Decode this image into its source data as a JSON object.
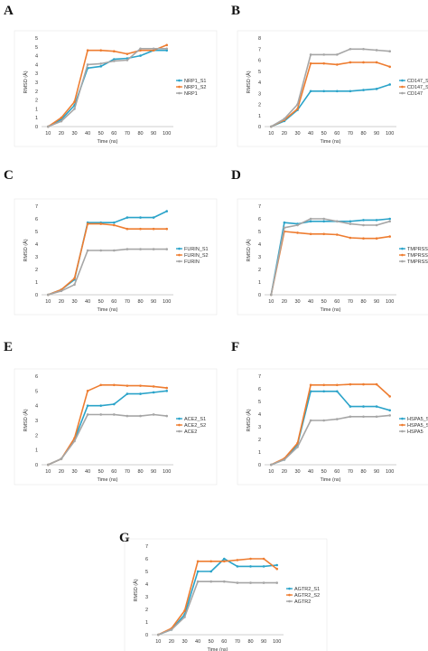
{
  "colors": {
    "s1": "#2aa3c9",
    "s2": "#ee7d31",
    "base": "#a6a6a6"
  },
  "chart_data": [
    {
      "letter": "A",
      "type": "line",
      "x": [
        10,
        20,
        30,
        40,
        50,
        60,
        70,
        80,
        90,
        100
      ],
      "xlabel": "Time (ns)",
      "ylabel": "RMSD (Å)",
      "ylim": [
        0,
        5
      ],
      "yticks": [
        "0",
        "1",
        "1",
        "2",
        "2",
        "3",
        "3",
        "4",
        "4",
        "5",
        "5"
      ],
      "series": [
        {
          "name": "NRP1_S1",
          "color": "s1",
          "values": [
            0,
            0.4,
            1.2,
            3.3,
            3.4,
            3.8,
            3.85,
            4.0,
            4.3,
            4.3
          ]
        },
        {
          "name": "NRP1_S2",
          "color": "s2",
          "values": [
            0,
            0.5,
            1.4,
            4.3,
            4.3,
            4.25,
            4.1,
            4.3,
            4.3,
            4.6
          ]
        },
        {
          "name": "NRP1",
          "color": "base",
          "values": [
            0,
            0.3,
            1.0,
            3.5,
            3.55,
            3.7,
            3.75,
            4.4,
            4.4,
            4.4
          ]
        }
      ]
    },
    {
      "letter": "B",
      "type": "line",
      "x": [
        10,
        20,
        30,
        40,
        50,
        60,
        70,
        80,
        90,
        100
      ],
      "xlabel": "Time (ns)",
      "ylabel": "RMSD (Å)",
      "ylim": [
        0,
        8
      ],
      "yticks": [
        "0",
        "1",
        "2",
        "3",
        "4",
        "5",
        "6",
        "7",
        "8"
      ],
      "series": [
        {
          "name": "CD147_S1",
          "color": "s1",
          "values": [
            0,
            0.5,
            1.5,
            3.2,
            3.2,
            3.2,
            3.2,
            3.3,
            3.4,
            3.8
          ]
        },
        {
          "name": "CD147_S2",
          "color": "s2",
          "values": [
            0,
            0.6,
            1.6,
            5.7,
            5.7,
            5.6,
            5.8,
            5.8,
            5.8,
            5.4
          ]
        },
        {
          "name": "CD147",
          "color": "base",
          "values": [
            0,
            0.7,
            2.0,
            6.5,
            6.5,
            6.5,
            7.0,
            7.0,
            6.9,
            6.8
          ]
        }
      ]
    },
    {
      "letter": "C",
      "type": "line",
      "x": [
        10,
        20,
        30,
        40,
        50,
        60,
        70,
        80,
        90,
        100
      ],
      "xlabel": "Time (ns)",
      "ylabel": "RMSD (Å)",
      "ylim": [
        0,
        7
      ],
      "yticks": [
        "0",
        "1",
        "2",
        "3",
        "4",
        "5",
        "6",
        "7"
      ],
      "series": [
        {
          "name": "FURIN_S1",
          "color": "s1",
          "values": [
            0,
            0.4,
            1.2,
            5.7,
            5.7,
            5.7,
            6.1,
            6.1,
            6.1,
            6.6
          ]
        },
        {
          "name": "FURIN_S2",
          "color": "s2",
          "values": [
            0,
            0.4,
            1.3,
            5.6,
            5.6,
            5.5,
            5.2,
            5.2,
            5.2,
            5.2
          ]
        },
        {
          "name": "FURIN",
          "color": "base",
          "values": [
            0,
            0.3,
            0.8,
            3.5,
            3.5,
            3.5,
            3.6,
            3.6,
            3.6,
            3.6
          ]
        }
      ]
    },
    {
      "letter": "D",
      "type": "line",
      "x": [
        10,
        20,
        30,
        40,
        50,
        60,
        70,
        80,
        90,
        100
      ],
      "xlabel": "Time (ns)",
      "ylabel": "RMSD (Å)",
      "ylim": [
        0,
        7
      ],
      "yticks": [
        "0",
        "1",
        "2",
        "3",
        "4",
        "5",
        "6",
        "7"
      ],
      "series": [
        {
          "name": "TMPRSS2_S1",
          "color": "s1",
          "values": [
            0,
            5.7,
            5.6,
            5.8,
            5.8,
            5.8,
            5.8,
            5.9,
            5.9,
            6.0
          ]
        },
        {
          "name": "TMPRSS2_S2",
          "color": "s2",
          "values": [
            0,
            5.0,
            4.9,
            4.8,
            4.8,
            4.75,
            4.5,
            4.45,
            4.45,
            4.6
          ]
        },
        {
          "name": "TMPRSS2",
          "color": "base",
          "values": [
            0,
            5.3,
            5.5,
            6.0,
            6.0,
            5.8,
            5.6,
            5.5,
            5.5,
            5.8
          ]
        }
      ]
    },
    {
      "letter": "E",
      "type": "line",
      "x": [
        10,
        20,
        30,
        40,
        50,
        60,
        70,
        80,
        90,
        100
      ],
      "xlabel": "Time (ns)",
      "ylabel": "RMSD (Å)",
      "ylim": [
        0,
        6
      ],
      "yticks": [
        "0",
        "1",
        "2",
        "3",
        "4",
        "5",
        "6"
      ],
      "series": [
        {
          "name": "ACE2_S1",
          "color": "s1",
          "values": [
            0,
            0.4,
            1.7,
            4.0,
            4.0,
            4.1,
            4.8,
            4.8,
            4.9,
            5.0
          ]
        },
        {
          "name": "ACE2_S2",
          "color": "s2",
          "values": [
            0,
            0.4,
            1.8,
            5.0,
            5.4,
            5.4,
            5.35,
            5.35,
            5.3,
            5.2
          ]
        },
        {
          "name": "ACE2",
          "color": "base",
          "values": [
            0,
            0.4,
            1.6,
            3.4,
            3.4,
            3.4,
            3.3,
            3.3,
            3.4,
            3.3
          ]
        }
      ]
    },
    {
      "letter": "F",
      "type": "line",
      "x": [
        10,
        20,
        30,
        40,
        50,
        60,
        70,
        80,
        90,
        100
      ],
      "xlabel": "Time (ns)",
      "ylabel": "RMSD (Å)",
      "ylim": [
        0,
        7
      ],
      "yticks": [
        "0",
        "1",
        "2",
        "3",
        "4",
        "5",
        "6",
        "7"
      ],
      "series": [
        {
          "name": "HSPA5_S1",
          "color": "s1",
          "values": [
            0,
            0.4,
            1.6,
            5.8,
            5.8,
            5.8,
            4.6,
            4.6,
            4.6,
            4.3
          ]
        },
        {
          "name": "HSPA5_S2",
          "color": "s2",
          "values": [
            0,
            0.5,
            1.7,
            6.3,
            6.3,
            6.3,
            6.35,
            6.35,
            6.35,
            5.4
          ]
        },
        {
          "name": "HSPA5",
          "color": "base",
          "values": [
            0,
            0.4,
            1.4,
            3.5,
            3.5,
            3.6,
            3.8,
            3.8,
            3.8,
            3.9
          ]
        }
      ]
    },
    {
      "letter": "G",
      "type": "line",
      "x": [
        10,
        20,
        30,
        40,
        50,
        60,
        70,
        80,
        90,
        100
      ],
      "xlabel": "Time (ns)",
      "ylabel": "RMSD (Å)",
      "ylim": [
        0,
        7
      ],
      "yticks": [
        "0",
        "1",
        "2",
        "3",
        "4",
        "5",
        "6",
        "7"
      ],
      "series": [
        {
          "name": "AGTR2_S1",
          "color": "s1",
          "values": [
            0,
            0.4,
            1.6,
            5.0,
            5.0,
            6.0,
            5.4,
            5.4,
            5.4,
            5.5
          ]
        },
        {
          "name": "AGTR2_S2",
          "color": "s2",
          "values": [
            0,
            0.5,
            1.9,
            5.8,
            5.8,
            5.8,
            5.9,
            6.0,
            6.0,
            5.2
          ]
        },
        {
          "name": "AGTR2",
          "color": "base",
          "values": [
            0,
            0.4,
            1.4,
            4.2,
            4.2,
            4.2,
            4.1,
            4.1,
            4.1,
            4.1
          ]
        }
      ]
    }
  ]
}
